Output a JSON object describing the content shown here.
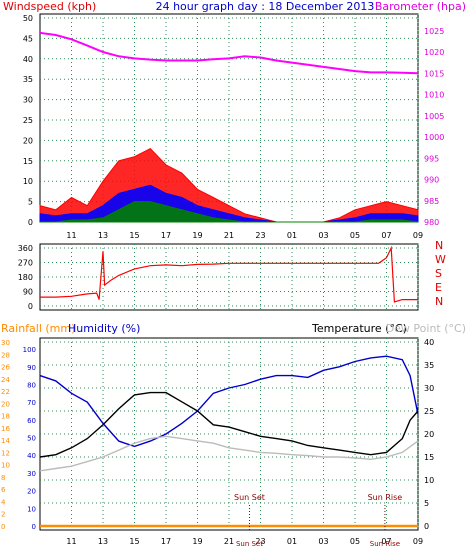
{
  "chart_data": [
    {
      "type": "line",
      "title": "24 hour graph day : 18 December 2013",
      "ylabel_left": "Windspeed (kph)",
      "ylabel_right": "Barometer (hpa)",
      "x_tick_labels": [
        "11",
        "13",
        "15",
        "17",
        "19",
        "21",
        "23",
        "01",
        "03",
        "05",
        "07",
        "09"
      ],
      "y_left_ticks": [
        "0",
        "5",
        "10",
        "15",
        "20",
        "25",
        "30",
        "35",
        "40",
        "45",
        "50"
      ],
      "y_right_ticks": [
        "980",
        "985",
        "990",
        "995",
        "1000",
        "1005",
        "1010",
        "1015",
        "1020",
        "1025"
      ],
      "ylim_left": [
        0,
        50
      ],
      "ylim_right": [
        980,
        1028
      ],
      "grid": true,
      "series": [
        {
          "name": "Barometer (hpa)",
          "color": "#ff00ff",
          "x": [
            9,
            10,
            11,
            12,
            13,
            14,
            15,
            16,
            17,
            18,
            19,
            20,
            21,
            22,
            23,
            24,
            25,
            26,
            27,
            28,
            29,
            30,
            31,
            32,
            33
          ],
          "values": [
            1024.5,
            1024,
            1023,
            1021.5,
            1020,
            1019,
            1018.5,
            1018.2,
            1018,
            1018,
            1018,
            1018.3,
            1018.5,
            1019,
            1018.7,
            1018,
            1017.5,
            1017,
            1016.5,
            1016,
            1015.5,
            1015.2,
            1015.2,
            1015.1,
            1015
          ]
        },
        {
          "name": "Wind gust",
          "color": "#ff0000",
          "x": [
            9,
            10,
            11,
            12,
            13,
            14,
            15,
            16,
            17,
            18,
            19,
            20,
            21,
            22,
            23,
            24,
            25,
            26,
            27,
            28,
            29,
            30,
            31,
            32,
            33
          ],
          "values": [
            4,
            3,
            6,
            4,
            10,
            15,
            16,
            18,
            14,
            12,
            8,
            6,
            4,
            2,
            1,
            0,
            0,
            0,
            0,
            1,
            3,
            4,
            5,
            4,
            3
          ]
        },
        {
          "name": "Wind average",
          "color": "#0000ff",
          "x": [
            9,
            10,
            11,
            12,
            13,
            14,
            15,
            16,
            17,
            18,
            19,
            20,
            21,
            22,
            23,
            24,
            25,
            26,
            27,
            28,
            29,
            30,
            31,
            32,
            33
          ],
          "values": [
            2,
            1.5,
            2,
            2,
            4,
            7,
            8,
            9,
            7,
            6,
            4,
            3,
            2,
            1,
            0.5,
            0,
            0,
            0,
            0,
            0.5,
            1,
            2,
            2,
            2,
            1.5
          ]
        },
        {
          "name": "Wind lull",
          "color": "#008000",
          "x": [
            9,
            10,
            11,
            12,
            13,
            14,
            15,
            16,
            17,
            18,
            19,
            20,
            21,
            22,
            23,
            24,
            25,
            26,
            27,
            28,
            29,
            30,
            31,
            32,
            33
          ],
          "values": [
            0,
            0,
            0.5,
            0.5,
            1,
            3,
            5,
            5,
            4,
            3,
            2,
            1,
            0.5,
            0,
            0,
            0,
            0,
            0,
            0,
            0,
            0,
            0.5,
            0.5,
            0.5,
            0
          ]
        }
      ]
    },
    {
      "type": "line",
      "title": "",
      "y_left_ticks": [
        "0",
        "90",
        "180",
        "270",
        "360"
      ],
      "y_right_ticks": [
        "N",
        "W",
        "S",
        "E",
        "N"
      ],
      "ylim": [
        0,
        360
      ],
      "grid": true,
      "series": [
        {
          "name": "Wind direction",
          "color": "#ff0000",
          "x": [
            9,
            10,
            11,
            12,
            12.6,
            12.75,
            13,
            13.1,
            13.5,
            14,
            15,
            16,
            17,
            18,
            19,
            20,
            21,
            22,
            23,
            24,
            25,
            26,
            27,
            28,
            29,
            30,
            30.5,
            31,
            31.3,
            31.5,
            32,
            33
          ],
          "values": [
            55,
            55,
            60,
            75,
            80,
            40,
            340,
            130,
            160,
            190,
            230,
            250,
            255,
            250,
            258,
            260,
            265,
            265,
            265,
            265,
            265,
            265,
            265,
            265,
            265,
            265,
            265,
            300,
            360,
            25,
            40,
            40
          ]
        }
      ]
    },
    {
      "type": "line",
      "ylabel_left_1": "Rainfall (mm)",
      "ylabel_left_2": "Humidity (%)",
      "ylabel_right_1": "Temperature (°C)",
      "ylabel_right_2": "Dew Point (°C)",
      "rain_ticks": [
        "0",
        "2",
        "4",
        "6",
        "8",
        "10",
        "12",
        "14",
        "16",
        "18",
        "20",
        "22",
        "24",
        "26",
        "28",
        "30"
      ],
      "humidity_ticks": [
        "0",
        "10",
        "20",
        "30",
        "40",
        "50",
        "60",
        "70",
        "80",
        "90",
        "100"
      ],
      "temperature_ticks": [
        "0",
        "5",
        "10",
        "15",
        "20",
        "25",
        "30",
        "35",
        "40"
      ],
      "ylim_humidity": [
        0,
        104
      ],
      "ylim_temperature": [
        0,
        40
      ],
      "annotations": [
        "Sun Set",
        "Sun Rise"
      ],
      "grid": true,
      "series": [
        {
          "name": "Humidity (%)",
          "color": "#0000cc",
          "x": [
            9,
            10,
            11,
            12,
            13,
            14,
            15,
            16,
            17,
            18,
            19,
            20,
            21,
            22,
            23,
            24,
            25,
            26,
            27,
            28,
            29,
            30,
            31,
            32,
            32.5,
            33
          ],
          "values": [
            85,
            82,
            75,
            70,
            58,
            48,
            45,
            48,
            52,
            58,
            65,
            75,
            78,
            80,
            83,
            85,
            85,
            84,
            88,
            90,
            93,
            95,
            96,
            94,
            85,
            63
          ]
        },
        {
          "name": "Temperature (°C)",
          "color": "#000000",
          "x": [
            9,
            10,
            11,
            12,
            13,
            14,
            15,
            16,
            17,
            18,
            19,
            20,
            21,
            22,
            23,
            24,
            25,
            26,
            27,
            28,
            29,
            30,
            31,
            32,
            32.5,
            33
          ],
          "values": [
            15,
            15.5,
            17,
            19,
            22,
            25.5,
            28.5,
            29,
            29,
            27,
            25,
            22,
            21.5,
            20.5,
            19.5,
            19,
            18.5,
            17.5,
            17,
            16.5,
            16,
            15.5,
            16,
            19,
            23,
            25
          ]
        },
        {
          "name": "Dew Point (°C)",
          "color": "#bbbbbb",
          "x": [
            9,
            10,
            11,
            12,
            13,
            14,
            15,
            16,
            17,
            18,
            19,
            20,
            21,
            22,
            23,
            24,
            25,
            26,
            27,
            28,
            29,
            30,
            31,
            32,
            33
          ],
          "values": [
            12,
            12.5,
            13,
            14,
            15,
            16.5,
            18,
            19,
            19.5,
            19,
            18.5,
            18,
            17,
            16.5,
            16,
            15.8,
            15.5,
            15.3,
            15,
            15,
            14.8,
            14.5,
            15,
            16,
            18.5
          ]
        },
        {
          "name": "Rainfall (mm)",
          "color": "#ff8c00",
          "x": [
            9,
            33
          ],
          "values": [
            0,
            0
          ]
        }
      ]
    }
  ],
  "colors": {
    "windspeed_label": "#dd0000",
    "barometer_label": "#dd00dd",
    "title": "#0000cc",
    "rain_label": "#ff8c00",
    "humidity_label": "#0000cc",
    "dewpoint_label": "#bbbbbb",
    "direction_letters": "#dd0000",
    "grid": "#2e8b57",
    "annotation": "#8b0000"
  }
}
